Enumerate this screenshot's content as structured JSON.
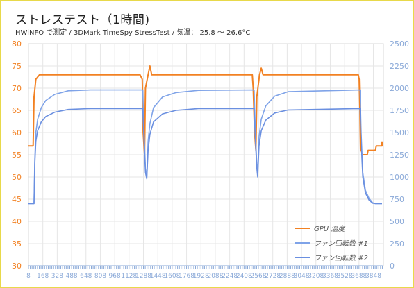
{
  "title": "ストレステスト（1時間)",
  "subtitle": "HWiNFO で測定 / 3DMark TimeSpy StressTest / 気温： 25.8 ～ 26.6°C",
  "colors": {
    "gpu_temp": "#f28122",
    "fan1": "#7fa3e8",
    "fan2": "#6a8fe0",
    "grid": "#e6e6e6",
    "left_axis": "#f28122",
    "right_axis": "#8aa9d8",
    "x_axis": "#8aa9d8"
  },
  "legend": [
    {
      "name": "GPU 温度",
      "color_key": "gpu_temp"
    },
    {
      "name": "ファン回転数 #1",
      "color_key": "fan1"
    },
    {
      "name": "ファン回転数 #2",
      "color_key": "fan2"
    }
  ],
  "chart_data": {
    "type": "line",
    "xlim": [
      8,
      3848
    ],
    "x_tick_labels": [
      "8",
      "168",
      "328",
      "488",
      "648",
      "808",
      "968",
      "1128",
      "1288",
      "1448",
      "1608",
      "1768",
      "1928",
      "2088",
      "2248",
      "2408",
      "2568",
      "2728",
      "2888",
      "3048",
      "3208",
      "3368",
      "3528",
      "3688",
      "3848"
    ],
    "y_left": {
      "lim": [
        30,
        80
      ],
      "ticks": [
        30,
        35,
        40,
        45,
        50,
        55,
        60,
        65,
        70,
        75,
        80
      ]
    },
    "y_right": {
      "lim": [
        0,
        2500
      ],
      "ticks": [
        0,
        250,
        500,
        750,
        1000,
        1250,
        1500,
        1750,
        2000,
        2250,
        2500
      ]
    },
    "grid": true,
    "legend_position": "bottom-right",
    "series": [
      {
        "name": "GPU 温度",
        "axis": "left",
        "points": [
          [
            8,
            57
          ],
          [
            60,
            57
          ],
          [
            70,
            68
          ],
          [
            90,
            72
          ],
          [
            130,
            73
          ],
          [
            400,
            73
          ],
          [
            800,
            73
          ],
          [
            1250,
            73
          ],
          [
            1275,
            72
          ],
          [
            1285,
            60
          ],
          [
            1300,
            55
          ],
          [
            1310,
            70
          ],
          [
            1340,
            73
          ],
          [
            1360,
            75
          ],
          [
            1380,
            73
          ],
          [
            1800,
            73
          ],
          [
            2500,
            73
          ],
          [
            2510,
            70
          ],
          [
            2525,
            60
          ],
          [
            2540,
            56
          ],
          [
            2550,
            68
          ],
          [
            2580,
            73
          ],
          [
            2600,
            74.5
          ],
          [
            2620,
            73
          ],
          [
            3000,
            73
          ],
          [
            3600,
            73
          ],
          [
            3680,
            73
          ],
          [
            3690,
            72
          ],
          [
            3698,
            65
          ],
          [
            3705,
            56
          ],
          [
            3720,
            55
          ],
          [
            3780,
            55
          ],
          [
            3790,
            56
          ],
          [
            3870,
            56
          ],
          [
            3880,
            57
          ],
          [
            3960,
            57
          ],
          [
            3970,
            58
          ],
          [
            4020,
            58
          ]
        ]
      },
      {
        "name": "ファン回転数 #1",
        "axis": "right",
        "points": [
          [
            8,
            700
          ],
          [
            70,
            700
          ],
          [
            78,
            1200
          ],
          [
            90,
            1500
          ],
          [
            110,
            1650
          ],
          [
            150,
            1780
          ],
          [
            200,
            1860
          ],
          [
            300,
            1930
          ],
          [
            450,
            1970
          ],
          [
            700,
            1980
          ],
          [
            1280,
            1980
          ],
          [
            1295,
            1500
          ],
          [
            1310,
            1100
          ],
          [
            1325,
            1000
          ],
          [
            1340,
            1400
          ],
          [
            1360,
            1600
          ],
          [
            1400,
            1780
          ],
          [
            1500,
            1900
          ],
          [
            1650,
            1950
          ],
          [
            1900,
            1975
          ],
          [
            2520,
            1980
          ],
          [
            2535,
            1500
          ],
          [
            2550,
            1150
          ],
          [
            2560,
            1050
          ],
          [
            2575,
            1450
          ],
          [
            2600,
            1650
          ],
          [
            2650,
            1800
          ],
          [
            2750,
            1910
          ],
          [
            2900,
            1960
          ],
          [
            3700,
            1980
          ],
          [
            3712,
            1500
          ],
          [
            3730,
            1050
          ],
          [
            3760,
            850
          ],
          [
            3800,
            760
          ],
          [
            3840,
            710
          ],
          [
            3870,
            700
          ],
          [
            4020,
            700
          ]
        ]
      },
      {
        "name": "ファン回転数 #2",
        "axis": "right",
        "points": [
          [
            8,
            700
          ],
          [
            70,
            700
          ],
          [
            78,
            1150
          ],
          [
            90,
            1400
          ],
          [
            110,
            1520
          ],
          [
            150,
            1620
          ],
          [
            200,
            1680
          ],
          [
            300,
            1730
          ],
          [
            450,
            1760
          ],
          [
            700,
            1770
          ],
          [
            1280,
            1770
          ],
          [
            1295,
            1400
          ],
          [
            1310,
            1050
          ],
          [
            1325,
            980
          ],
          [
            1340,
            1300
          ],
          [
            1360,
            1480
          ],
          [
            1400,
            1620
          ],
          [
            1500,
            1710
          ],
          [
            1650,
            1750
          ],
          [
            1900,
            1770
          ],
          [
            2520,
            1770
          ],
          [
            2535,
            1400
          ],
          [
            2550,
            1100
          ],
          [
            2560,
            1000
          ],
          [
            2575,
            1350
          ],
          [
            2600,
            1520
          ],
          [
            2650,
            1640
          ],
          [
            2750,
            1720
          ],
          [
            2900,
            1755
          ],
          [
            3700,
            1770
          ],
          [
            3712,
            1400
          ],
          [
            3730,
            1000
          ],
          [
            3760,
            820
          ],
          [
            3800,
            740
          ],
          [
            3840,
            705
          ],
          [
            3870,
            700
          ],
          [
            4020,
            700
          ]
        ]
      }
    ]
  }
}
